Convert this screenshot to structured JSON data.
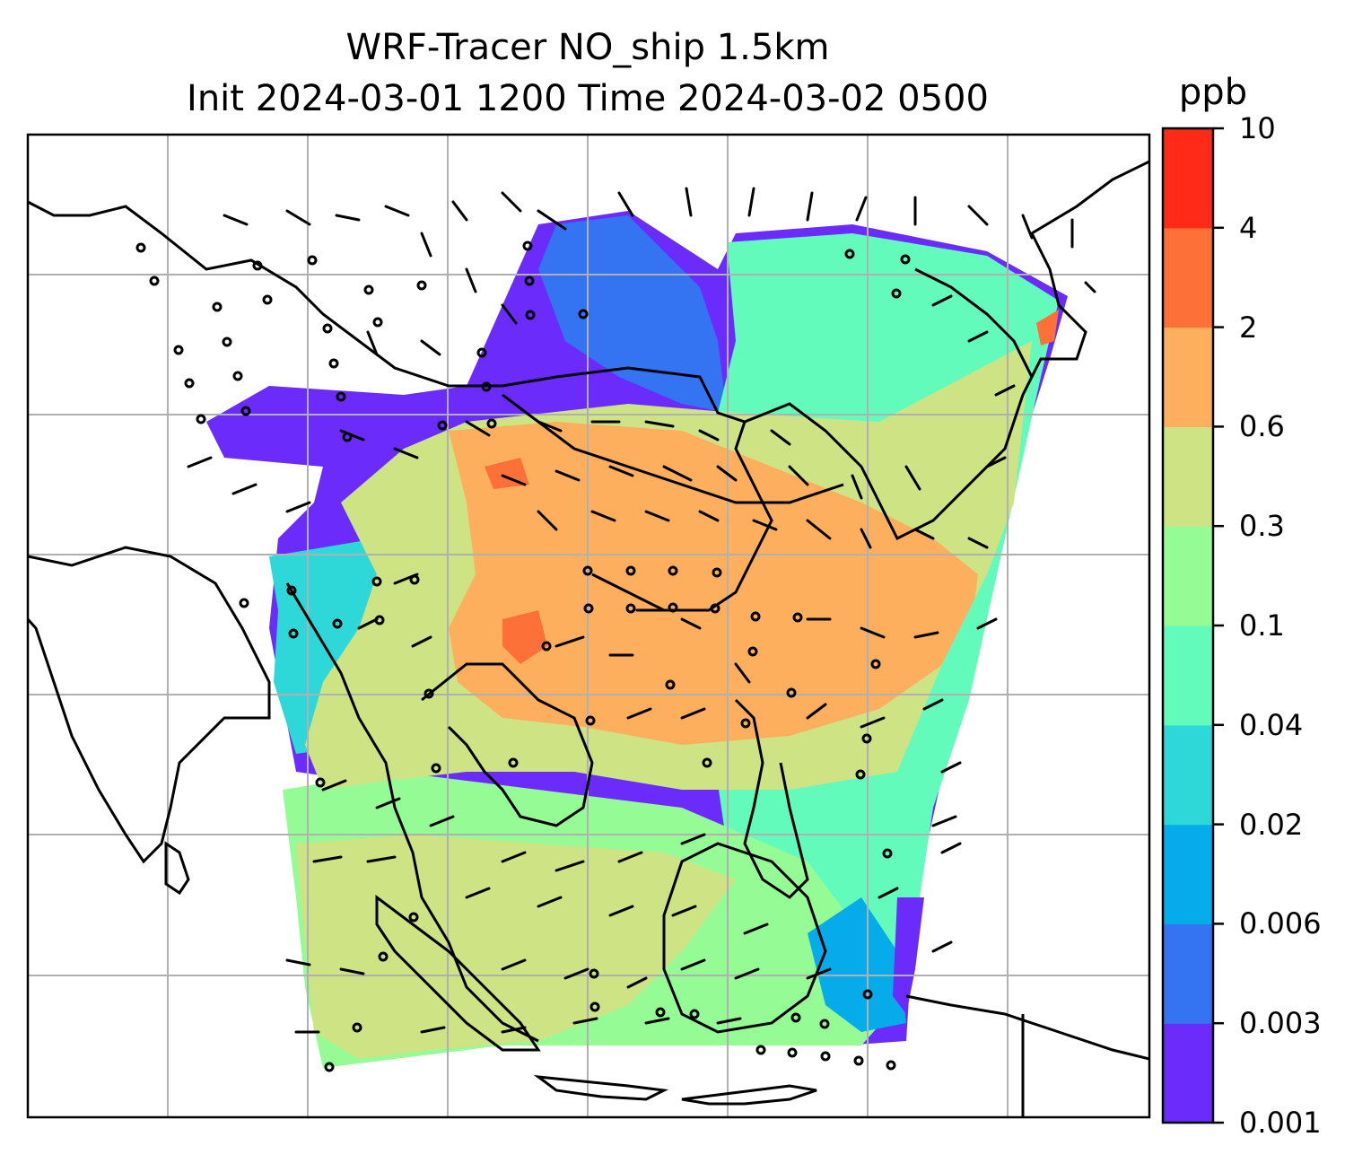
{
  "title": {
    "line1": "WRF-Tracer NO_ship 1.5km",
    "line2": "Init 2024-03-01 1200 Time 2024-03-02 0500"
  },
  "colorbar": {
    "units": "ppb",
    "ticks": [
      "0.001",
      "0.003",
      "0.006",
      "0.02",
      "0.04",
      "0.1",
      "0.3",
      "0.6",
      "2",
      "4",
      "10"
    ],
    "colors": [
      "#6a2bfb",
      "#3474f3",
      "#06acea",
      "#2fd8d8",
      "#63fbbc",
      "#95fb95",
      "#cde384",
      "#fdaf5e",
      "#fd7139",
      "#ff2a17"
    ]
  },
  "map": {
    "variable": "NO_ship tracer concentration",
    "overlay": "wind barbs",
    "gridlines": true,
    "ocean_color": "#ffffff",
    "coast_color": "#000000",
    "grid_color": "#b0b0b0"
  }
}
